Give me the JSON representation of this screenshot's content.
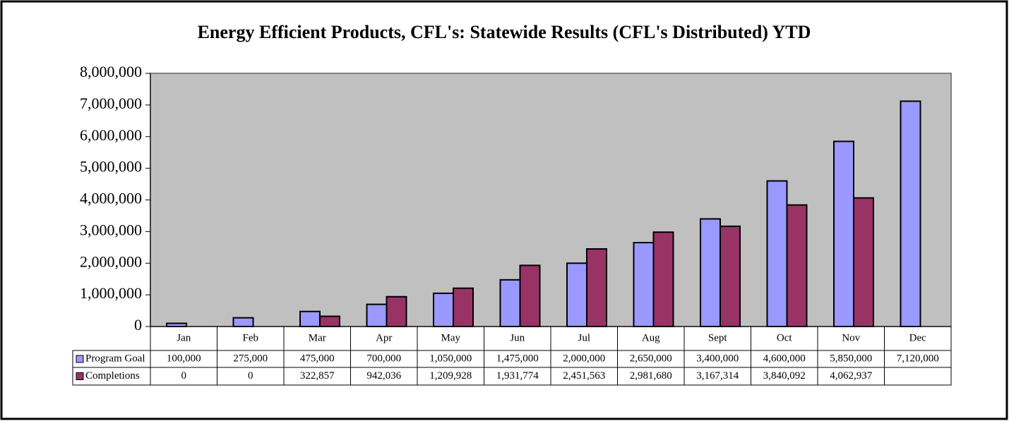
{
  "chart_data": {
    "type": "bar",
    "title": "Energy Efficient Products, CFL's: Statewide Results (CFL's Distributed) YTD",
    "categories": [
      "Jan",
      "Feb",
      "Mar",
      "Apr",
      "May",
      "Jun",
      "Jul",
      "Aug",
      "Sept",
      "Oct",
      "Nov",
      "Dec"
    ],
    "series": [
      {
        "name": "Program Goal",
        "color": "#9999ff",
        "values": [
          100000,
          275000,
          475000,
          700000,
          1050000,
          1475000,
          2000000,
          2650000,
          3400000,
          4600000,
          5850000,
          7120000
        ],
        "value_labels": [
          "100,000",
          "275,000",
          "475,000",
          "700,000",
          "1,050,000",
          "1,475,000",
          "2,000,000",
          "2,650,000",
          "3,400,000",
          "4,600,000",
          "5,850,000",
          "7,120,000"
        ]
      },
      {
        "name": "Completions",
        "color": "#993366",
        "values": [
          0,
          0,
          322857,
          942036,
          1209928,
          1931774,
          2451563,
          2981680,
          3167314,
          3840092,
          4062937,
          null
        ],
        "value_labels": [
          "0",
          "0",
          "322,857",
          "942,036",
          "1,209,928",
          "1,931,774",
          "2,451,563",
          "2,981,680",
          "3,167,314",
          "3,840,092",
          "4,062,937",
          null
        ]
      }
    ],
    "ylim": [
      0,
      8000000
    ],
    "yticks": [
      0,
      {
        "value": 1000000,
        "label": "1,000,000"
      },
      {
        "value": 2000000,
        "label": "2,000,000"
      },
      {
        "value": 3000000,
        "label": "3,000,000"
      },
      {
        "value": 4000000,
        "label": "4,000,000"
      },
      {
        "value": 5000000,
        "label": "5,000,000"
      },
      {
        "value": 6000000,
        "label": "6,000,000"
      },
      {
        "value": 7000000,
        "label": "7,000,000"
      },
      {
        "value": 8000000,
        "label": "8,000,000"
      }
    ],
    "plot_background": "#c0c0c0",
    "data_table": true
  }
}
